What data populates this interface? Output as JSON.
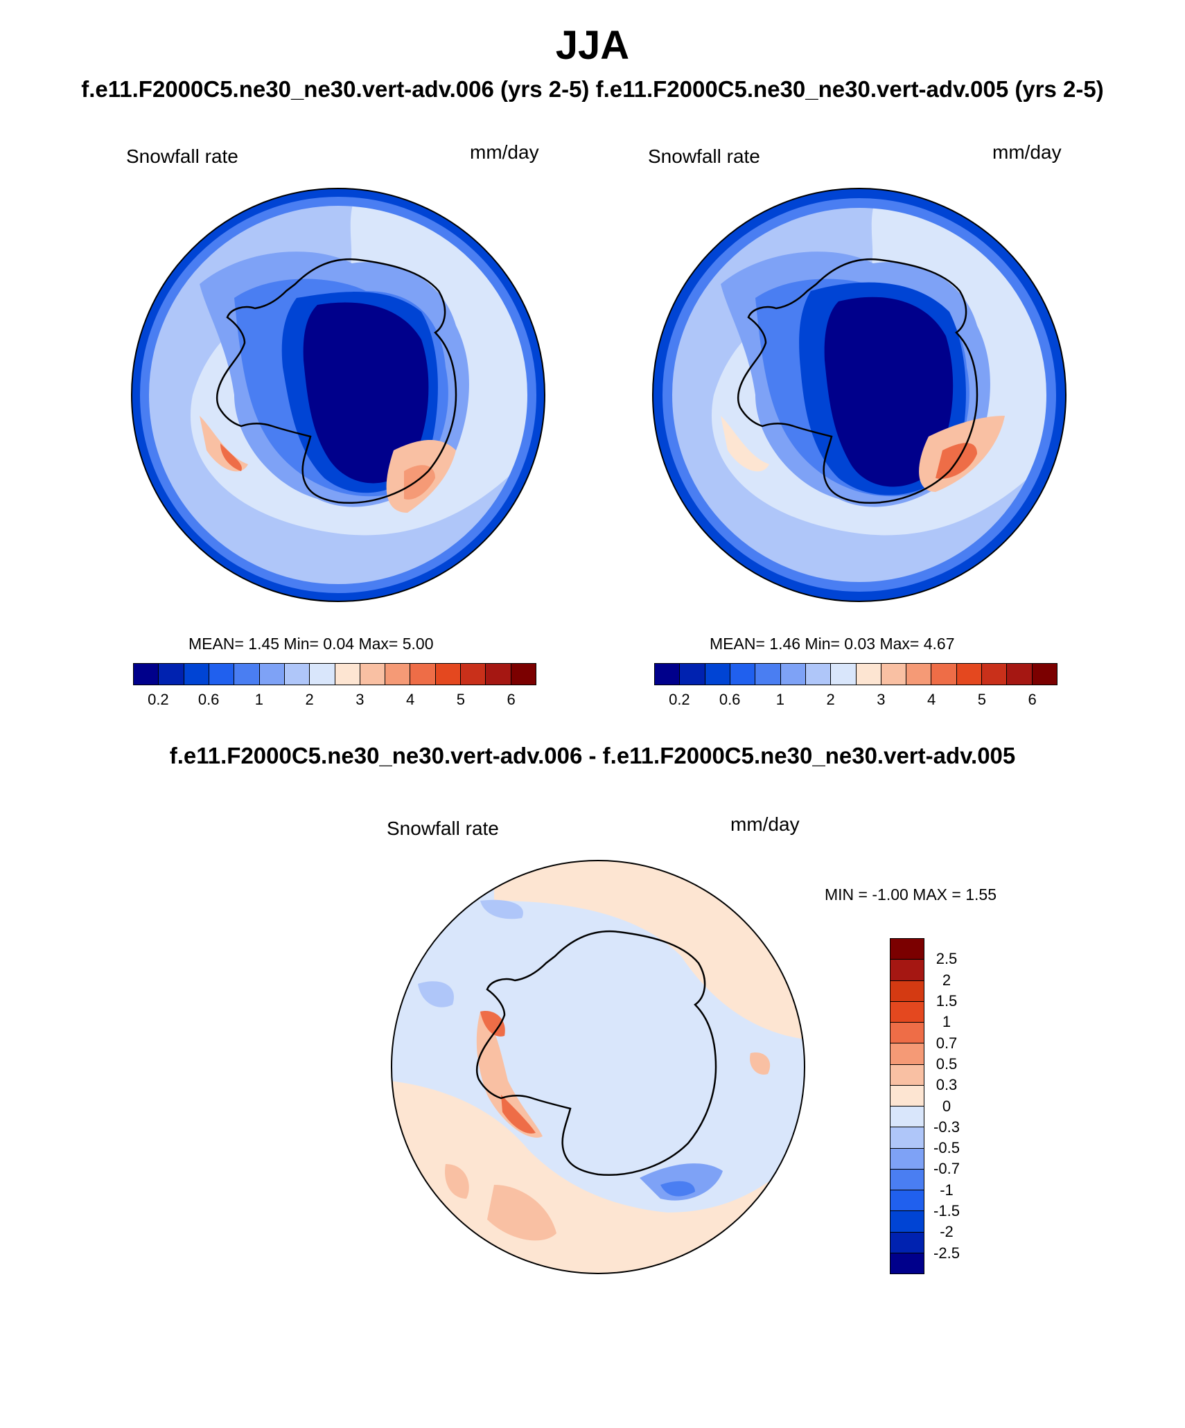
{
  "page": {
    "title": "JJA",
    "subtitle": "f.e11.F2000C5.ne30_ne30.vert-adv.006 (yrs 2-5)  f.e11.F2000C5.ne30_ne30.vert-adv.005 (yrs 2-5)",
    "diff_title": "f.e11.F2000C5.ne30_ne30.vert-adv.006 - f.e11.F2000C5.ne30_ne30.vert-adv.005"
  },
  "panels": {
    "left": {
      "field_label": "Snowfall rate",
      "units": "mm/day",
      "stats": "MEAN=   1.45   Min=    0.04   Max=    5.00"
    },
    "right": {
      "field_label": "Snowfall rate",
      "units": "mm/day",
      "stats": "MEAN=   1.46   Min=    0.03   Max=    4.67"
    },
    "diff": {
      "field_label": "Snowfall rate",
      "units": "mm/day",
      "stats": "MIN =  -1.00  MAX =    1.55"
    }
  },
  "colorbars": {
    "abs": {
      "colors": [
        "#00008b",
        "#0022b0",
        "#0044d4",
        "#2060ee",
        "#4a7ef2",
        "#7ea2f6",
        "#afc6f9",
        "#d9e6fb",
        "#fde5d2",
        "#f9c0a3",
        "#f59a76",
        "#ee6d47",
        "#e4481f",
        "#c9301a",
        "#a51712",
        "#7b0000"
      ],
      "tick_labels": [
        "0.2",
        "0.6",
        "1",
        "2",
        "3",
        "4",
        "5",
        "6"
      ]
    },
    "diff": {
      "colors": [
        "#7b0000",
        "#a51712",
        "#d43a12",
        "#e4481f",
        "#ee6d47",
        "#f59a76",
        "#f9c0a3",
        "#fde5d2",
        "#d9e6fb",
        "#afc6f9",
        "#7ea2f6",
        "#4a7ef2",
        "#2060ee",
        "#0044d4",
        "#0022b0",
        "#00008b"
      ],
      "tick_labels": [
        "2.5",
        "2",
        "1.5",
        "1",
        "0.7",
        "0.5",
        "0.3",
        "0",
        "-0.3",
        "-0.5",
        "-0.7",
        "-1",
        "-1.5",
        "-2",
        "-2.5"
      ]
    }
  },
  "map_colors": {
    "ocean_outer": "#d9e6fb",
    "mid_blue": "#7ea2f6",
    "blue": "#4a7ef2",
    "dark_blue": "#0044d4",
    "navy": "#00008b",
    "pale_orange": "#fde5d2",
    "orange": "#f59a76",
    "red_orange": "#ee6d47",
    "coast": "#000000"
  }
}
